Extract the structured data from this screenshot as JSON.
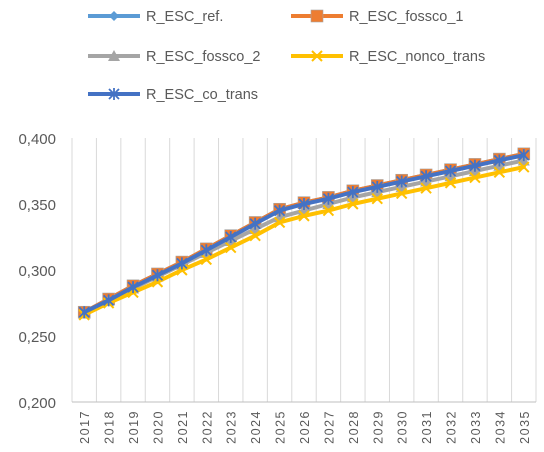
{
  "chart_data": {
    "type": "line",
    "title": "",
    "xlabel": "",
    "ylabel": "",
    "ylim": [
      0.2,
      0.4
    ],
    "y_ticks": [
      "0,200",
      "0,250",
      "0,300",
      "0,350",
      "0,400"
    ],
    "y_tick_values": [
      0.2,
      0.25,
      0.3,
      0.35,
      0.4
    ],
    "grid": "vertical",
    "legend_position": "top",
    "categories": [
      "2017",
      "2018",
      "2019",
      "2020",
      "2021",
      "2022",
      "2023",
      "2024",
      "2025",
      "2026",
      "2027",
      "2028",
      "2029",
      "2030",
      "2031",
      "2032",
      "2033",
      "2034",
      "2035"
    ],
    "series": [
      {
        "name": "R_ESC_ref.",
        "color": "#5B9BD5",
        "marker": "diamond",
        "values": [
          0.268,
          0.278,
          0.288,
          0.297,
          0.306,
          0.316,
          0.326,
          0.336,
          0.346,
          0.351,
          0.355,
          0.36,
          0.364,
          0.368,
          0.372,
          0.376,
          0.38,
          0.384,
          0.388
        ]
      },
      {
        "name": "R_ESC_fossco_1",
        "color": "#ED7D31",
        "marker": "square",
        "values": [
          0.268,
          0.278,
          0.288,
          0.297,
          0.306,
          0.316,
          0.326,
          0.336,
          0.346,
          0.351,
          0.355,
          0.36,
          0.364,
          0.368,
          0.372,
          0.376,
          0.38,
          0.384,
          0.388
        ]
      },
      {
        "name": "R_ESC_fossco_2",
        "color": "#A5A5A5",
        "marker": "triangle",
        "values": [
          0.267,
          0.277,
          0.286,
          0.295,
          0.304,
          0.313,
          0.322,
          0.331,
          0.34,
          0.345,
          0.35,
          0.355,
          0.359,
          0.363,
          0.367,
          0.371,
          0.375,
          0.379,
          0.383
        ]
      },
      {
        "name": "R_ESC_nonco_trans",
        "color": "#FFC000",
        "marker": "x",
        "values": [
          0.266,
          0.275,
          0.283,
          0.291,
          0.3,
          0.308,
          0.317,
          0.326,
          0.336,
          0.341,
          0.345,
          0.35,
          0.354,
          0.358,
          0.362,
          0.366,
          0.37,
          0.374,
          0.378
        ]
      },
      {
        "name": "R_ESC_co_trans",
        "color": "#4472C4",
        "marker": "star",
        "values": [
          0.268,
          0.277,
          0.287,
          0.296,
          0.305,
          0.315,
          0.325,
          0.335,
          0.345,
          0.35,
          0.354,
          0.359,
          0.363,
          0.367,
          0.371,
          0.375,
          0.379,
          0.383,
          0.387
        ]
      }
    ]
  }
}
